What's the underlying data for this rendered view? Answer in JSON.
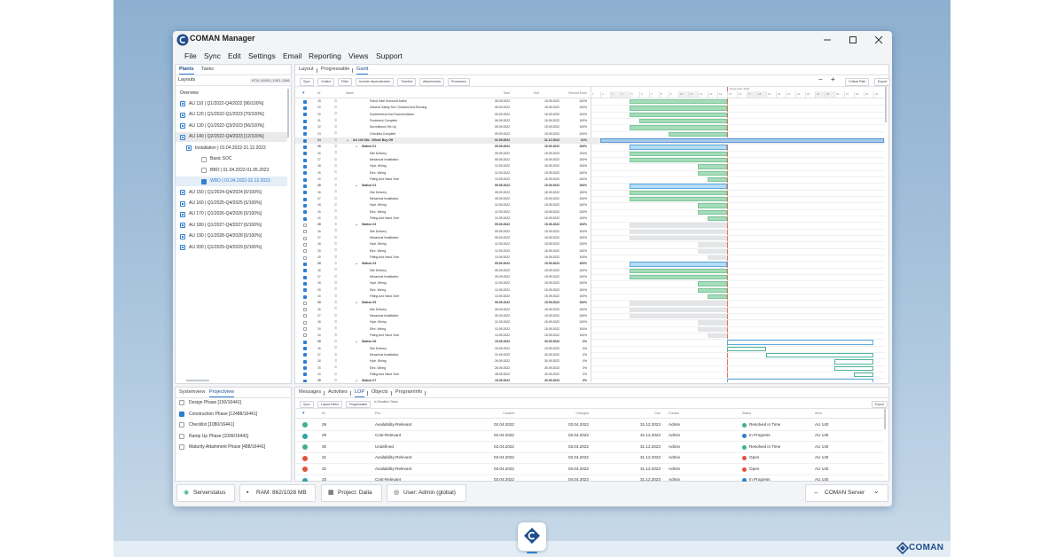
{
  "window": {
    "title": "COMAN Manager"
  },
  "menu": [
    "File",
    "Sync",
    "Edit",
    "Settings",
    "Email",
    "Reporting",
    "Views",
    "Support"
  ],
  "plants_panel": {
    "tabs": [
      "Plants",
      "Tasks"
    ],
    "layouts_label": "Layouts",
    "layouts_value": "KTN 14400 | 1001-1346",
    "items": [
      {
        "label": "Overview",
        "level": 0,
        "icon": "none",
        "checked": false
      },
      {
        "label": "AU 110 | Q1/2022-Q4/2022 [96/100%]",
        "level": 0,
        "icon": "node",
        "checked": false
      },
      {
        "label": "AU 120 | Q1/2022-Q1/2023 [70/100%]",
        "level": 0,
        "icon": "node",
        "checked": false
      },
      {
        "label": "AU 130 | Q1/2022-Q3/2023 [96/100%]",
        "level": 0,
        "icon": "node",
        "checked": false
      },
      {
        "label": "AU 140 | Q2/2022-Q4/2023 [12/100%]",
        "level": 0,
        "icon": "node",
        "checked": false,
        "selected": true
      },
      {
        "label": "Installation | 01.04.2022-31.12.2023",
        "level": 1,
        "icon": "node",
        "checked": false
      },
      {
        "label": "Basic SOC",
        "level": 2,
        "icon": "box",
        "checked": false
      },
      {
        "label": "BBO | 01.04.2022-01.05.2022",
        "level": 2,
        "icon": "box",
        "checked": false
      },
      {
        "label": "WBO | 01.04.2022-31.12.2023",
        "level": 2,
        "icon": "box",
        "checked": true,
        "selected": true
      },
      {
        "label": "AU 150 | Q1/2024-Q4/2024 [0/100%]",
        "level": 0,
        "icon": "node",
        "checked": false
      },
      {
        "label": "AU 160 | Q1/2025-Q4/2025 [0/100%]",
        "level": 0,
        "icon": "node",
        "checked": false
      },
      {
        "label": "AU 170 | Q1/2026-Q4/2026 [0/100%]",
        "level": 0,
        "icon": "node",
        "checked": false
      },
      {
        "label": "AU 180 | Q1/2027-Q4/2027 [0/100%]",
        "level": 0,
        "icon": "node",
        "checked": false
      },
      {
        "label": "AU 190 | Q1/2028-Q4/2028 [0/100%]",
        "level": 0,
        "icon": "node",
        "checked": false
      },
      {
        "label": "AU 200 | Q1/2029-Q4/2029 [0/100%]",
        "level": 0,
        "icon": "node",
        "checked": false
      }
    ]
  },
  "gantt_panel": {
    "tabs": [
      "Layout",
      "Progressable",
      "Gantt"
    ],
    "tools": [
      "Sync",
      "Outline",
      "Filter",
      "Include dependencies",
      "Timeline",
      "Attachments",
      "Processes"
    ],
    "right_tools": [
      "Critical Path",
      "Export"
    ],
    "columns": [
      "Nr",
      "Name",
      "Start",
      "End",
      "Percent Done"
    ],
    "month": "September 2022",
    "days": [
      1,
      2,
      3,
      4,
      5,
      6,
      7,
      8,
      9,
      10,
      11,
      12,
      13,
      14,
      15,
      16,
      17,
      18,
      19,
      20,
      21,
      22,
      23,
      24,
      25,
      26,
      27,
      28,
      29,
      30
    ],
    "rows": [
      {
        "nr": 28,
        "name": "Robot Safe Surround Active",
        "start": "05.09.2022",
        "end": "15.09.2022",
        "done": "100%",
        "level": 2,
        "checked": true
      },
      {
        "nr": 29,
        "name": "General Safety Set, Checked And Running",
        "start": "05.09.2022",
        "end": "15.09.2022",
        "done": "100%",
        "level": 2,
        "checked": true
      },
      {
        "nr": 30,
        "name": "Doublecheck And Documentation",
        "start": "05.09.2022",
        "end": "15.09.2022",
        "done": "100%",
        "level": 2,
        "checked": true
      },
      {
        "nr": 31,
        "name": "Postcheck Complete",
        "start": "06.09.2022",
        "end": "15.09.2022",
        "done": "100%",
        "level": 2,
        "checked": true
      },
      {
        "nr": 32,
        "name": "Surveillance Set Up",
        "start": "05.09.2022",
        "end": "15.09.2022",
        "done": "100%",
        "level": 2,
        "checked": true
      },
      {
        "nr": 33,
        "name": "Checklist Complete",
        "start": "09.09.2022",
        "end": "15.09.2022",
        "done": "100%",
        "level": 2,
        "checked": true
      },
      {
        "nr": 34,
        "name": "AU 140 Site - Whole Buy Off",
        "start": "02.09.2022",
        "end": "31.12.2022",
        "done": "61%",
        "level": 0,
        "checked": true
      },
      {
        "nr": 35,
        "name": "Station 01",
        "start": "05.09.2022",
        "end": "15.09.2022",
        "done": "100%",
        "level": 1,
        "checked": true
      },
      {
        "nr": 36,
        "name": "Site Delivery",
        "start": "05.09.2022",
        "end": "15.09.2022",
        "done": "100%",
        "level": 2,
        "checked": true
      },
      {
        "nr": 37,
        "name": "Mecanical Installation",
        "start": "05.09.2022",
        "end": "15.09.2022",
        "done": "100%",
        "level": 2,
        "checked": true
      },
      {
        "nr": 38,
        "name": "Hydr. Wiring",
        "start": "12.09.2022",
        "end": "15.09.2022",
        "done": "100%",
        "level": 2,
        "checked": true
      },
      {
        "nr": 39,
        "name": "Elec. Wiring",
        "start": "12.09.2022",
        "end": "15.09.2022",
        "done": "100%",
        "level": 2,
        "checked": true
      },
      {
        "nr": 40,
        "name": "Fitting And Hand Over",
        "start": "13.09.2022",
        "end": "15.09.2022",
        "done": "100%",
        "level": 2,
        "checked": true
      },
      {
        "nr": 35,
        "name": "Station 02",
        "start": "05.09.2022",
        "end": "15.09.2022",
        "done": "100%",
        "level": 1,
        "checked": true
      },
      {
        "nr": 36,
        "name": "Site Delivery",
        "start": "05.09.2022",
        "end": "15.09.2022",
        "done": "100%",
        "level": 2,
        "checked": true
      },
      {
        "nr": 37,
        "name": "Mecanical Installation",
        "start": "05.09.2022",
        "end": "15.09.2022",
        "done": "100%",
        "level": 2,
        "checked": true
      },
      {
        "nr": 38,
        "name": "Hydr. Wiring",
        "start": "12.09.2022",
        "end": "15.09.2022",
        "done": "100%",
        "level": 2,
        "checked": true
      },
      {
        "nr": 39,
        "name": "Elec. Wiring",
        "start": "12.09.2022",
        "end": "15.09.2022",
        "done": "100%",
        "level": 2,
        "checked": true
      },
      {
        "nr": 40,
        "name": "Fitting And Hand Over",
        "start": "13.09.2022",
        "end": "15.09.2022",
        "done": "100%",
        "level": 2,
        "checked": true
      },
      {
        "nr": 35,
        "name": "Station 03",
        "start": "05.09.2022",
        "end": "15.09.2022",
        "done": "100%",
        "level": 1,
        "checked": false
      },
      {
        "nr": 36,
        "name": "Site Delivery",
        "start": "05.09.2022",
        "end": "15.09.2022",
        "done": "100%",
        "level": 2,
        "checked": false
      },
      {
        "nr": 37,
        "name": "Mecanical Installation",
        "start": "05.09.2022",
        "end": "15.09.2022",
        "done": "100%",
        "level": 2,
        "checked": false
      },
      {
        "nr": 38,
        "name": "Hydr. Wiring",
        "start": "12.09.2022",
        "end": "15.09.2022",
        "done": "100%",
        "level": 2,
        "checked": false
      },
      {
        "nr": 39,
        "name": "Elec. Wiring",
        "start": "12.09.2022",
        "end": "15.09.2022",
        "done": "100%",
        "level": 2,
        "checked": false
      },
      {
        "nr": 40,
        "name": "Fitting And Hand Over",
        "start": "13.09.2022",
        "end": "15.09.2022",
        "done": "100%",
        "level": 2,
        "checked": false
      },
      {
        "nr": 35,
        "name": "Station 04",
        "start": "05.09.2022",
        "end": "15.09.2022",
        "done": "100%",
        "level": 1,
        "checked": true
      },
      {
        "nr": 36,
        "name": "Site Delivery",
        "start": "05.09.2022",
        "end": "15.09.2022",
        "done": "100%",
        "level": 2,
        "checked": true
      },
      {
        "nr": 37,
        "name": "Mecanical Installation",
        "start": "05.09.2022",
        "end": "15.09.2022",
        "done": "100%",
        "level": 2,
        "checked": true
      },
      {
        "nr": 38,
        "name": "Hydr. Wiring",
        "start": "12.09.2022",
        "end": "15.09.2022",
        "done": "100%",
        "level": 2,
        "checked": true
      },
      {
        "nr": 39,
        "name": "Elec. Wiring",
        "start": "12.09.2022",
        "end": "15.09.2022",
        "done": "100%",
        "level": 2,
        "checked": true
      },
      {
        "nr": 40,
        "name": "Fitting And Hand Over",
        "start": "13.09.2022",
        "end": "15.09.2022",
        "done": "100%",
        "level": 2,
        "checked": true
      },
      {
        "nr": 35,
        "name": "Station 05",
        "start": "05.09.2022",
        "end": "15.09.2022",
        "done": "100%",
        "level": 1,
        "checked": false
      },
      {
        "nr": 36,
        "name": "Site Delivery",
        "start": "05.09.2022",
        "end": "15.09.2022",
        "done": "100%",
        "level": 2,
        "checked": false
      },
      {
        "nr": 37,
        "name": "Mecanical Installation",
        "start": "05.09.2022",
        "end": "15.09.2022",
        "done": "100%",
        "level": 2,
        "checked": false
      },
      {
        "nr": 38,
        "name": "Hydr. Wiring",
        "start": "12.09.2022",
        "end": "15.09.2022",
        "done": "100%",
        "level": 2,
        "checked": false
      },
      {
        "nr": 39,
        "name": "Elec. Wiring",
        "start": "12.09.2022",
        "end": "15.09.2022",
        "done": "100%",
        "level": 2,
        "checked": false
      },
      {
        "nr": 40,
        "name": "Fitting And Hand Over",
        "start": "13.09.2022",
        "end": "15.09.2022",
        "done": "100%",
        "level": 2,
        "checked": false
      },
      {
        "nr": 35,
        "name": "Station 06",
        "start": "15.09.2022",
        "end": "30.09.2022",
        "done": "0%",
        "level": 1,
        "checked": true
      },
      {
        "nr": 36,
        "name": "Site Delivery",
        "start": "15.09.2022",
        "end": "19.09.2022",
        "done": "0%",
        "level": 2,
        "checked": true
      },
      {
        "nr": 37,
        "name": "Mecanical Installation",
        "start": "19.09.2022",
        "end": "30.09.2022",
        "done": "0%",
        "level": 2,
        "checked": true
      },
      {
        "nr": 38,
        "name": "Hydr. Wiring",
        "start": "26.09.2022",
        "end": "30.09.2022",
        "done": "0%",
        "level": 2,
        "checked": true
      },
      {
        "nr": 39,
        "name": "Elec. Wiring",
        "start": "26.09.2022",
        "end": "30.09.2022",
        "done": "0%",
        "level": 2,
        "checked": true
      },
      {
        "nr": 40,
        "name": "Fitting And Hand Over",
        "start": "28.09.2022",
        "end": "30.09.2022",
        "done": "0%",
        "level": 2,
        "checked": true
      },
      {
        "nr": 35,
        "name": "Station 07",
        "start": "15.09.2022",
        "end": "30.09.2022",
        "done": "0%",
        "level": 1,
        "checked": true
      }
    ]
  },
  "phase_panel": {
    "tabs": [
      "Systemview",
      "Projectview"
    ],
    "items": [
      {
        "label": "Design Phase [150/16441]",
        "checked": false
      },
      {
        "label": "Construction Phase [12488/16441]",
        "checked": true
      },
      {
        "label": "Checklist [1080/16441]",
        "checked": false
      },
      {
        "label": "Ramp Up Phase [1099/16441]",
        "checked": false
      },
      {
        "label": "Maturity Attainment Phase [488/16441]",
        "checked": false
      }
    ]
  },
  "lop_panel": {
    "tabs": [
      "Messages",
      "Activities",
      "LOP",
      "Objects",
      "ProgramInfo"
    ],
    "tools": [
      "Sync",
      "Layout Editor",
      "Progressable",
      "Is Deadline Tasks"
    ],
    "export": "Export",
    "columns": [
      "Nr",
      "Prio",
      "Created",
      "Changed",
      "Due",
      "Creator",
      "Status",
      "Area"
    ],
    "rows": [
      {
        "color": "#3fb37f",
        "nr": 28,
        "prio": "Availability-Relevant",
        "created": "02.04.2022",
        "changed": "03.04.2022",
        "due": "31.12.2023",
        "creator": "Admin",
        "status": "Resolved in Time",
        "status_color": "#3fb37f",
        "area": "AU 140"
      },
      {
        "color": "#2fa3a8",
        "nr": 29,
        "prio": "Cost-Relevant",
        "created": "02.04.2022",
        "changed": "03.04.2022",
        "due": "31.12.2023",
        "creator": "Admin",
        "status": "In Progress",
        "status_color": "#2f7fd0",
        "area": "AU 140"
      },
      {
        "color": "#3fb37f",
        "nr": 30,
        "prio": "Undefined",
        "created": "02.04.2022",
        "changed": "03.04.2022",
        "due": "31.12.2023",
        "creator": "Admin",
        "status": "Resolved in Time",
        "status_color": "#3fb37f",
        "area": "AU 140"
      },
      {
        "color": "#e0533d",
        "nr": 31,
        "prio": "Availability-Relevant",
        "created": "03.04.2022",
        "changed": "03.04.2022",
        "due": "31.12.2023",
        "creator": "Admin",
        "status": "Open",
        "status_color": "#e0533d",
        "area": "AU 140"
      },
      {
        "color": "#e0533d",
        "nr": 32,
        "prio": "Availability-Relevant",
        "created": "03.04.2022",
        "changed": "03.04.2022",
        "due": "31.12.2023",
        "creator": "Admin",
        "status": "Open",
        "status_color": "#e0533d",
        "area": "AU 140"
      },
      {
        "color": "#2fa3a8",
        "nr": 33,
        "prio": "Cost-Relevant",
        "created": "03.04.2022",
        "changed": "04.04.2022",
        "due": "31.12.2023",
        "creator": "Admin",
        "status": "In Progress",
        "status_color": "#2f7fd0",
        "area": "AU 140"
      }
    ]
  },
  "status_bar": {
    "items": [
      "Serverstatus",
      "RAM: 862/1028 MB",
      "Project: Dalia",
      "User: Admin (global)"
    ],
    "server": "COMAN Server"
  },
  "brand": "COMAN"
}
